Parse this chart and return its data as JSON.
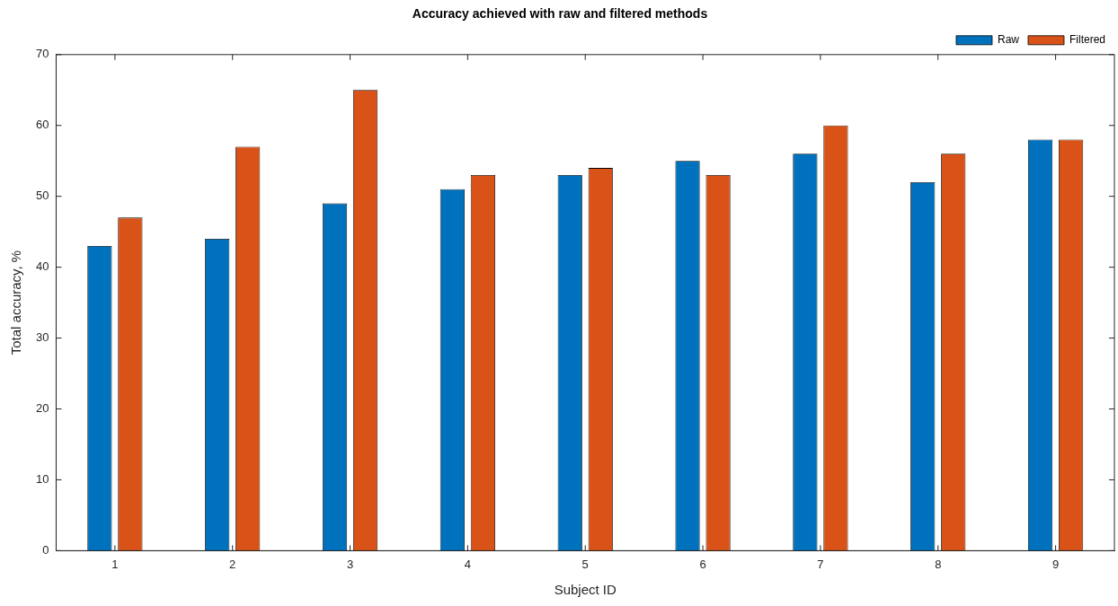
{
  "chart_data": {
    "type": "bar",
    "title": "Accuracy achieved with raw and filtered methods",
    "xlabel": "Subject ID",
    "ylabel": "Total accuracy, %",
    "categories": [
      "1",
      "2",
      "3",
      "4",
      "5",
      "6",
      "7",
      "8",
      "9"
    ],
    "series": [
      {
        "name": "Raw",
        "color": "#0072bd",
        "values": [
          43,
          44,
          49,
          51,
          53,
          55,
          56,
          52,
          58
        ]
      },
      {
        "name": "Filtered",
        "color": "#d95319",
        "values": [
          47,
          57,
          65,
          53,
          54,
          53,
          60,
          56,
          58
        ]
      }
    ],
    "ylim": [
      0,
      70
    ],
    "yticks": [
      0,
      10,
      20,
      30,
      40,
      50,
      60,
      70
    ],
    "grid": false,
    "legend": "top right"
  }
}
